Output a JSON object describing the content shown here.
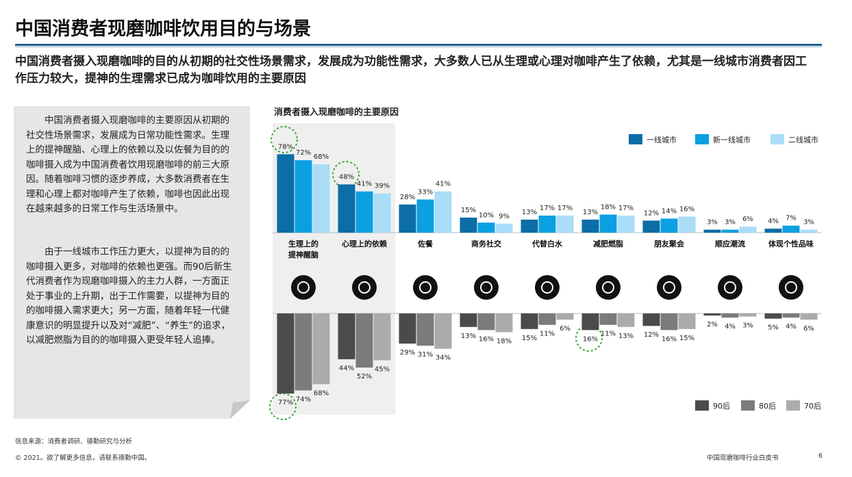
{
  "title": "中国消费者现磨咖啡饮用目的与场景",
  "subtitle": "中国消费者摄入现磨咖啡的目的从初期的社交性场景需求，发展成为功能性需求，大多数人已从生理或心理对咖啡产生了依赖，尤其是一线城市消费者因工作压力较大，提神的生理需求已成为咖啡饮用的主要原因",
  "sidebar": {
    "paragraphs": [
      "中国消费者摄入现磨咖啡的主要原因从初期的社交性场景需求，发展成为日常功能性需求。生理上的提神醒脑、心理上的依赖以及以佐餐为目的的咖啡摄入成为中国消费者饮用现磨咖啡的前三大原因。随着咖啡习惯的逐步养成，大多数消费者在生理和心理上都对咖啡产生了依赖，咖啡也因此出现在越来越多的日常工作与生活场景中。",
      "由于一线城市工作压力更大，以提神为目的的咖啡摄入更多，对咖啡的依赖也更强。而90后新生代消费者作为现磨咖啡摄入的主力人群，一方面正处于事业的上升期，出于工作需要，以提神为目的的咖啡摄入需求更大；另一方面，随着年轻一代健康意识的明显提升以及对“减肥”、“养生”的追求，以减肥燃脂为目的的咖啡摄入更受年轻人追捧。"
    ]
  },
  "chart_data": {
    "type": "bar",
    "title": "消费者摄入现磨咖啡的主要原因",
    "categories": [
      "生理上的提神醒脑",
      "心理上的依赖",
      "佐餐",
      "商务社交",
      "代替白水",
      "减肥燃脂",
      "朋友聚会",
      "顺应潮流",
      "体现个性品味"
    ],
    "legend": "top-right",
    "legend2": "bottom-right",
    "series": [
      {
        "name": "一线城市",
        "color": "#0b6ea6",
        "values": [
          78,
          48,
          28,
          15,
          13,
          13,
          12,
          3,
          4
        ],
        "value_labels": [
          "78%",
          "48%",
          "28%",
          "15%",
          "13%",
          "13%",
          "12%",
          "3%",
          "4%"
        ]
      },
      {
        "name": "新一线城市",
        "color": "#0aa0e2",
        "values": [
          72,
          41,
          33,
          10,
          17,
          18,
          14,
          3,
          7
        ],
        "value_labels": [
          "72%",
          "41%",
          "33%",
          "10%",
          "17%",
          "18%",
          "14%",
          "3%",
          "7%"
        ]
      },
      {
        "name": "二线城市",
        "color": "#a9ddf8",
        "values": [
          68,
          39,
          41,
          9,
          17,
          17,
          16,
          6,
          3
        ],
        "value_labels": [
          "68%",
          "39%",
          "41%",
          "9%",
          "17%",
          "17%",
          "16%",
          "6%",
          "3%"
        ]
      },
      {
        "name": "90后",
        "color": "#4b4b4d",
        "axis": "y2",
        "values": [
          77,
          44,
          29,
          13,
          15,
          16,
          12,
          2,
          5
        ],
        "value_labels": [
          "77%",
          "44%",
          "29%",
          "13%",
          "15%",
          "16%",
          "12%",
          "2%",
          "5%"
        ]
      },
      {
        "name": "80后",
        "color": "#7b7b7d",
        "axis": "y2",
        "values": [
          74,
          52,
          31,
          16,
          11,
          11,
          16,
          4,
          4
        ],
        "value_labels": [
          "74%",
          "52%",
          "31%",
          "16%",
          "11%",
          "11%",
          "16%",
          "4%",
          "4%"
        ]
      },
      {
        "name": "70后",
        "color": "#ababab",
        "axis": "y2",
        "values": [
          68,
          45,
          34,
          18,
          6,
          13,
          15,
          3,
          6
        ],
        "value_labels": [
          "68%",
          "45%",
          "34%",
          "18%",
          "6%",
          "13%",
          "15%",
          "3%",
          "6%"
        ]
      }
    ]
  },
  "footer": {
    "source": "信息来源：消费者调研、德勤研究与分析",
    "copyright": "© 2021。欲了解更多信息，请联系德勤中国。",
    "report": "中国现磨咖啡行业白皮书",
    "page": "6"
  }
}
